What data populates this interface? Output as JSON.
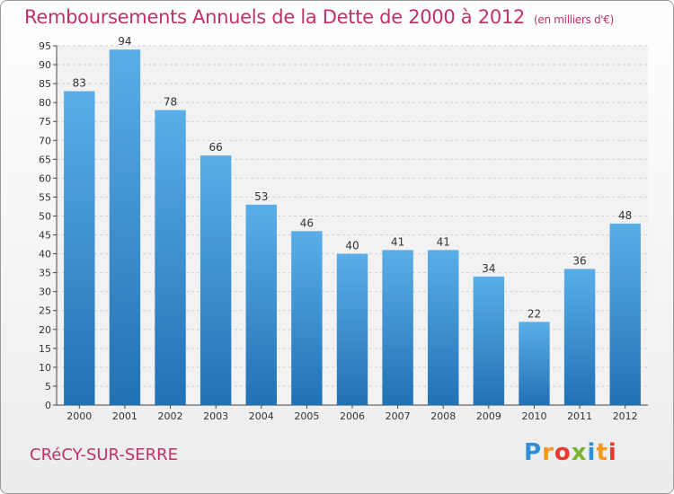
{
  "title": "Remboursements Annuels de la Dette de 2000 à 2012",
  "subtitle": "(en milliers d'€)",
  "commune": "CRéCY-SUR-SERRE",
  "logo": {
    "letters": [
      "P",
      "r",
      "o",
      "x",
      "i",
      "t",
      "i"
    ]
  },
  "colors": {
    "accent": "#c0306a",
    "bar_light": "#5aaee8",
    "bar_dark": "#2171b5"
  },
  "chart_data": {
    "type": "bar",
    "categories": [
      "2000",
      "2001",
      "2002",
      "2003",
      "2004",
      "2005",
      "2006",
      "2007",
      "2008",
      "2009",
      "2010",
      "2011",
      "2012"
    ],
    "values": [
      83,
      94,
      78,
      66,
      53,
      46,
      40,
      41,
      41,
      34,
      22,
      36,
      48
    ],
    "title": "Remboursements Annuels de la Dette de 2000 à 2012",
    "ylim": [
      0,
      95
    ],
    "ytick_step": 5,
    "grid": true
  }
}
